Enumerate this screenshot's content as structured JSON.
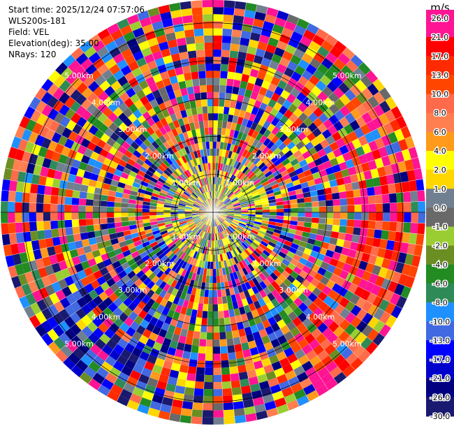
{
  "info": {
    "start_time": "Start time: 2025/12/24 07:57:06",
    "instrument": "WLS200s-181",
    "field": "Field: VEL",
    "elevation": "Elevation(deg): 35.00",
    "nrays": "NRays: 120"
  },
  "chart_data": {
    "type": "heatmap",
    "projection": "polar-ppi",
    "field": "VEL",
    "elevation_deg": 35.0,
    "n_rays": 120,
    "range_rings_km": [
      1.0,
      2.0,
      3.0,
      4.0,
      5.0
    ],
    "range_ring_labels": [
      "1.00km",
      "2.00km",
      "3.00km",
      "4.00km",
      "5.00km"
    ],
    "max_range_km": 5.6,
    "colorbar": {
      "unit": "m/s",
      "tick_labels": [
        "26.0",
        "21.0",
        "17.0",
        "13.0",
        "10.0",
        "8.0",
        "6.0",
        "4.0",
        "2.0",
        "1.0",
        "0.0",
        "-1.0",
        "-2.0",
        "-4.0",
        "-6.0",
        "-8.0",
        "-10.0",
        "-13.0",
        "-17.0",
        "-21.0",
        "-26.0",
        "-30.0"
      ],
      "colors": [
        "#ff1493",
        "#ff1493",
        "#ff0000",
        "#ff2a00",
        "#ff4500",
        "#ff6a4a",
        "#ff7f50",
        "#ff9a1a",
        "#ffff00",
        "#ffd700",
        "#708090",
        "#696969",
        "#9acd32",
        "#6b8e23",
        "#228b22",
        "#2e8b57",
        "#1e90ff",
        "#4169e1",
        "#0000ff",
        "#0000cd",
        "#000080",
        "#191970"
      ]
    },
    "dominant_pattern": {
      "sector_blue_deg": [
        200,
        240
      ],
      "sector_red_deg": [
        60,
        150
      ],
      "center_mixed": "yellow/green near origin"
    }
  }
}
